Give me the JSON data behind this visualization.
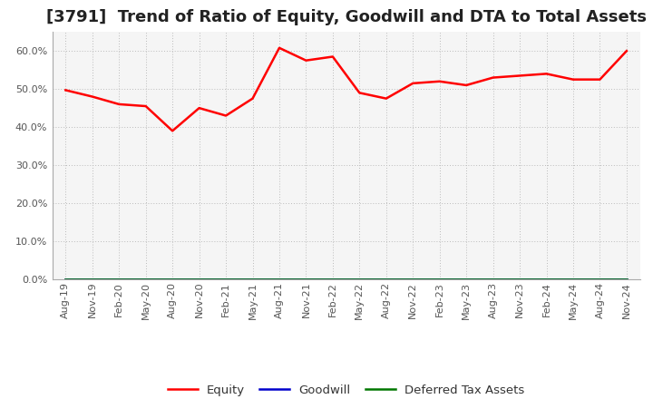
{
  "title": "[3791]  Trend of Ratio of Equity, Goodwill and DTA to Total Assets",
  "x_labels": [
    "Aug-19",
    "Nov-19",
    "Feb-20",
    "May-20",
    "Aug-20",
    "Nov-20",
    "Feb-21",
    "May-21",
    "Aug-21",
    "Nov-21",
    "Feb-22",
    "May-22",
    "Aug-22",
    "Nov-22",
    "Feb-23",
    "May-23",
    "Aug-23",
    "Nov-23",
    "Feb-24",
    "May-24",
    "Aug-24",
    "Nov-24"
  ],
  "equity": [
    0.497,
    0.48,
    0.46,
    0.455,
    0.39,
    0.45,
    0.43,
    0.475,
    0.608,
    0.575,
    0.585,
    0.49,
    0.475,
    0.515,
    0.52,
    0.51,
    0.53,
    0.535,
    0.54,
    0.525,
    0.525,
    0.6
  ],
  "goodwill": [
    0.0,
    0.0,
    0.0,
    0.0,
    0.0,
    0.0,
    0.0,
    0.0,
    0.0,
    0.0,
    0.0,
    0.0,
    0.0,
    0.0,
    0.0,
    0.0,
    0.0,
    0.0,
    0.0,
    0.0,
    0.0,
    0.0
  ],
  "dta": [
    0.0,
    0.0,
    0.0,
    0.0,
    0.0,
    0.0,
    0.0,
    0.0,
    0.0,
    0.0,
    0.0,
    0.0,
    0.0,
    0.0,
    0.0,
    0.0,
    0.0,
    0.0,
    0.0,
    0.0,
    0.0,
    0.0
  ],
  "equity_color": "#FF0000",
  "goodwill_color": "#0000CC",
  "dta_color": "#007700",
  "ylim_min": 0.0,
  "ylim_max": 0.65,
  "yticks": [
    0.0,
    0.1,
    0.2,
    0.3,
    0.4,
    0.5,
    0.6
  ],
  "background_color": "#FFFFFF",
  "plot_bg_color": "#F5F5F5",
  "grid_color": "#BBBBBB",
  "title_fontsize": 13,
  "tick_fontsize": 8,
  "legend_labels": [
    "Equity",
    "Goodwill",
    "Deferred Tax Assets"
  ]
}
